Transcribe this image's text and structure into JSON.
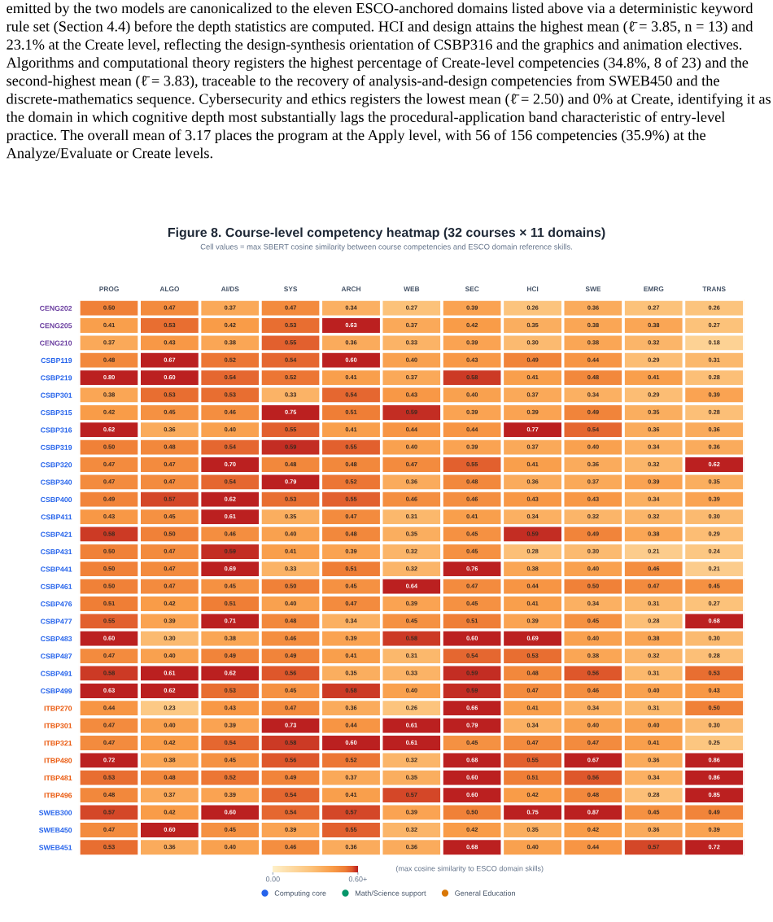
{
  "chart_data": {
    "type": "heatmap",
    "title": "Figure 8. Course-level competency heatmap (32 courses × 11 domains)",
    "subtitle": "Cell values = max SBERT cosine similarity between course competencies and ESCO domain reference skills.",
    "annotations": [
      "emitted by the two models are canonicalized to the eleven ESCO-anchored domains listed above via a deterministic keyword rule set (Section 4.4) before the depth statistics are computed. HCI and design attains the highest mean (ℓ̄ = 3.85, n = 13) and 23.1% at the Create level, reflecting the design-synthesis orientation of CSBP316 and the graphics and animation electives. Algorithms and computational theory registers the highest percentage of Create-level competencies (34.8%, 8 of 23) and the second-highest mean (ℓ̄ = 3.83), traceable to the recovery of analysis-and-design competencies from SWEB450 and the discrete-mathematics sequence. Cybersecurity and ethics registers the lowest mean (ℓ̄ = 2.50) and 0% at Create, identifying it as the domain in which cognitive depth most substantially lags the procedural-application band characteristic of entry-level practice. The overall mean of 3.17 places the program at the Apply level, with 56 of 156 competencies (35.9%) at the Analyze/Evaluate or Create levels."
    ],
    "categories": [
      "PROG",
      "ALGO",
      "AI/DS",
      "SYS",
      "ARCH",
      "WEB",
      "SEC",
      "HCI",
      "SWE",
      "EMRG",
      "TRANS"
    ],
    "y_categories": [
      "CENG202",
      "CENG205",
      "CENG210",
      "CSBP119",
      "CSBP219",
      "CSBP301",
      "CSBP315",
      "CSBP316",
      "CSBP319",
      "CSBP320",
      "CSBP340",
      "CSBP400",
      "CSBP411",
      "CSBP421",
      "CSBP431",
      "CSBP441",
      "CSBP461",
      "CSBP476",
      "CSBP477",
      "CSBP483",
      "CSBP487",
      "CSBP491",
      "CSBP499",
      "ITBP270",
      "ITBP301",
      "ITBP321",
      "ITBP480",
      "ITBP481",
      "ITBP496",
      "SWEB300",
      "SWEB450",
      "SWEB451"
    ],
    "colors": [
      "#6b3fa0",
      "#6b3fa0",
      "#6b3fa0",
      "#2563eb",
      "#2563eb",
      "#2563eb",
      "#2563eb",
      "#2563eb",
      "#2563eb",
      "#2563eb",
      "#2563eb",
      "#2563eb",
      "#2563eb",
      "#2563eb",
      "#2563eb",
      "#2563eb",
      "#2563eb",
      "#2563eb",
      "#2563eb",
      "#2563eb",
      "#2563eb",
      "#2563eb",
      "#2563eb",
      "#ea580c",
      "#ea580c",
      "#ea580c",
      "#ea580c",
      "#ea580c",
      "#ea580c",
      "#2563eb",
      "#2563eb",
      "#2563eb"
    ],
    "cells": [
      [
        0.5,
        0.47,
        0.37,
        0.47,
        0.34,
        0.27,
        0.39,
        0.26,
        0.36,
        0.27,
        0.26
      ],
      [
        0.41,
        0.53,
        0.42,
        0.53,
        0.63,
        0.37,
        0.42,
        0.35,
        0.38,
        0.38,
        0.27
      ],
      [
        0.37,
        0.43,
        0.38,
        0.55,
        0.36,
        0.33,
        0.39,
        0.3,
        0.38,
        0.32,
        0.18
      ],
      [
        0.48,
        0.67,
        0.52,
        0.54,
        0.6,
        0.4,
        0.43,
        0.49,
        0.44,
        0.29,
        0.31
      ],
      [
        0.8,
        0.6,
        0.54,
        0.52,
        0.41,
        0.37,
        0.58,
        0.41,
        0.48,
        0.41,
        0.28
      ],
      [
        0.38,
        0.53,
        0.53,
        0.33,
        0.54,
        0.43,
        0.4,
        0.37,
        0.34,
        0.29,
        0.39
      ],
      [
        0.42,
        0.45,
        0.46,
        0.75,
        0.51,
        0.59,
        0.39,
        0.39,
        0.49,
        0.35,
        0.28
      ],
      [
        0.62,
        0.36,
        0.4,
        0.55,
        0.41,
        0.44,
        0.44,
        0.77,
        0.54,
        0.36,
        0.36
      ],
      [
        0.5,
        0.48,
        0.54,
        0.59,
        0.55,
        0.4,
        0.39,
        0.37,
        0.4,
        0.34,
        0.36
      ],
      [
        0.47,
        0.47,
        0.7,
        0.48,
        0.48,
        0.47,
        0.55,
        0.41,
        0.36,
        0.32,
        0.62
      ],
      [
        0.47,
        0.47,
        0.54,
        0.79,
        0.52,
        0.36,
        0.48,
        0.36,
        0.37,
        0.39,
        0.35
      ],
      [
        0.49,
        0.57,
        0.62,
        0.53,
        0.55,
        0.46,
        0.46,
        0.43,
        0.43,
        0.34,
        0.39
      ],
      [
        0.43,
        0.45,
        0.61,
        0.35,
        0.47,
        0.31,
        0.41,
        0.34,
        0.32,
        0.32,
        0.3
      ],
      [
        0.58,
        0.5,
        0.46,
        0.4,
        0.48,
        0.35,
        0.45,
        0.59,
        0.49,
        0.38,
        0.29
      ],
      [
        0.5,
        0.47,
        0.59,
        0.41,
        0.39,
        0.32,
        0.45,
        0.28,
        0.3,
        0.21,
        0.24
      ],
      [
        0.5,
        0.47,
        0.69,
        0.33,
        0.51,
        0.32,
        0.76,
        0.38,
        0.4,
        0.46,
        0.21
      ],
      [
        0.5,
        0.47,
        0.45,
        0.5,
        0.45,
        0.64,
        0.47,
        0.44,
        0.5,
        0.47,
        0.45
      ],
      [
        0.51,
        0.42,
        0.51,
        0.4,
        0.47,
        0.39,
        0.45,
        0.41,
        0.34,
        0.31,
        0.27
      ],
      [
        0.55,
        0.39,
        0.71,
        0.48,
        0.34,
        0.45,
        0.51,
        0.39,
        0.45,
        0.28,
        0.68
      ],
      [
        0.6,
        0.3,
        0.38,
        0.46,
        0.39,
        0.58,
        0.6,
        0.69,
        0.4,
        0.38,
        0.3
      ],
      [
        0.47,
        0.4,
        0.49,
        0.49,
        0.41,
        0.31,
        0.54,
        0.53,
        0.38,
        0.32,
        0.28
      ],
      [
        0.58,
        0.61,
        0.62,
        0.56,
        0.35,
        0.33,
        0.59,
        0.48,
        0.56,
        0.31,
        0.53
      ],
      [
        0.63,
        0.62,
        0.53,
        0.45,
        0.58,
        0.4,
        0.59,
        0.47,
        0.46,
        0.4,
        0.43
      ],
      [
        0.44,
        0.23,
        0.43,
        0.47,
        0.36,
        0.26,
        0.66,
        0.41,
        0.34,
        0.31,
        0.5
      ],
      [
        0.47,
        0.4,
        0.39,
        0.73,
        0.44,
        0.61,
        0.79,
        0.34,
        0.4,
        0.4,
        0.3
      ],
      [
        0.47,
        0.42,
        0.54,
        0.58,
        0.6,
        0.61,
        0.45,
        0.47,
        0.47,
        0.41,
        0.25
      ],
      [
        0.72,
        0.38,
        0.45,
        0.56,
        0.52,
        0.32,
        0.68,
        0.55,
        0.67,
        0.36,
        0.86
      ],
      [
        0.53,
        0.48,
        0.52,
        0.49,
        0.37,
        0.35,
        0.6,
        0.51,
        0.56,
        0.34,
        0.86
      ],
      [
        0.48,
        0.37,
        0.39,
        0.54,
        0.41,
        0.57,
        0.6,
        0.42,
        0.48,
        0.28,
        0.85
      ],
      [
        0.57,
        0.42,
        0.6,
        0.54,
        0.57,
        0.39,
        0.5,
        0.75,
        0.87,
        0.45,
        0.49
      ],
      [
        0.47,
        0.6,
        0.45,
        0.39,
        0.55,
        0.32,
        0.42,
        0.35,
        0.42,
        0.36,
        0.39
      ],
      [
        0.53,
        0.36,
        0.4,
        0.46,
        0.36,
        0.36,
        0.68,
        0.4,
        0.44,
        0.57,
        0.72
      ]
    ],
    "cell_labels": [
      [
        "0.50",
        "0.47",
        "0.37",
        "0.47",
        "0.34",
        "0.27",
        "0.39",
        "0.26",
        "0.36",
        "0.27",
        "0.26"
      ],
      [
        "0.41",
        "0.53",
        "0.42",
        "0.53",
        "0.63",
        "0.37",
        "0.42",
        "0.35",
        "0.38",
        "0.38",
        "0.27"
      ],
      [
        "0.37",
        "0.43",
        "0.38",
        "0.55",
        "0.36",
        "0.33",
        "0.39",
        "0.30",
        "0.38",
        "0.32",
        "0.18"
      ],
      [
        "0.48",
        "0.67",
        "0.52",
        "0.54",
        "0.60",
        "0.40",
        "0.43",
        "0.49",
        "0.44",
        "0.29",
        "0.31"
      ],
      [
        "0.80",
        "0.60",
        "0.54",
        "0.52",
        "0.41",
        "0.37",
        "0.58",
        "0.41",
        "0.48",
        "0.41",
        "0.28"
      ],
      [
        "0.38",
        "0.53",
        "0.53",
        "0.33",
        "0.54",
        "0.43",
        "0.40",
        "0.37",
        "0.34",
        "0.29",
        "0.39"
      ],
      [
        "0.42",
        "0.45",
        "0.46",
        "0.75",
        "0.51",
        "0.59",
        "0.39",
        "0.39",
        "0.49",
        "0.35",
        "0.28"
      ],
      [
        "0.62",
        "0.36",
        "0.40",
        "0.55",
        "0.41",
        "0.44",
        "0.44",
        "0.77",
        "0.54",
        "0.36",
        "0.36"
      ],
      [
        "0.50",
        "0.48",
        "0.54",
        "0.59",
        "0.55",
        "0.40",
        "0.39",
        "0.37",
        "0.40",
        "0.34",
        "0.36"
      ],
      [
        "0.47",
        "0.47",
        "0.70",
        "0.48",
        "0.48",
        "0.47",
        "0.55",
        "0.41",
        "0.36",
        "0.32",
        "0.62"
      ],
      [
        "0.47",
        "0.47",
        "0.54",
        "0.79",
        "0.52",
        "0.36",
        "0.48",
        "0.36",
        "0.37",
        "0.39",
        "0.35"
      ],
      [
        "0.49",
        "0.57",
        "0.62",
        "0.53",
        "0.55",
        "0.46",
        "0.46",
        "0.43",
        "0.43",
        "0.34",
        "0.39"
      ],
      [
        "0.43",
        "0.45",
        "0.61",
        "0.35",
        "0.47",
        "0.31",
        "0.41",
        "0.34",
        "0.32",
        "0.32",
        "0.30"
      ],
      [
        "0.58",
        "0.50",
        "0.46",
        "0.40",
        "0.48",
        "0.35",
        "0.45",
        "0.59",
        "0.49",
        "0.38",
        "0.29"
      ],
      [
        "0.50",
        "0.47",
        "0.59",
        "0.41",
        "0.39",
        "0.32",
        "0.45",
        "0.28",
        "0.30",
        "0.21",
        "0.24"
      ],
      [
        "0.50",
        "0.47",
        "0.69",
        "0.33",
        "0.51",
        "0.32",
        "0.76",
        "0.38",
        "0.40",
        "0.46",
        "0.21"
      ],
      [
        "0.50",
        "0.47",
        "0.45",
        "0.50",
        "0.45",
        "0.64",
        "0.47",
        "0.44",
        "0.50",
        "0.47",
        "0.45"
      ],
      [
        "0.51",
        "0.42",
        "0.51",
        "0.40",
        "0.47",
        "0.39",
        "0.45",
        "0.41",
        "0.34",
        "0.31",
        "0.27"
      ],
      [
        "0.55",
        "0.39",
        "0.71",
        "0.48",
        "0.34",
        "0.45",
        "0.51",
        "0.39",
        "0.45",
        "0.28",
        "0.68"
      ],
      [
        "0.60",
        "0.30",
        "0.38",
        "0.46",
        "0.39",
        "0.58",
        "0.60",
        "0.69",
        "0.40",
        "0.38",
        "0.30"
      ],
      [
        "0.47",
        "0.40",
        "0.49",
        "0.49",
        "0.41",
        "0.31",
        "0.54",
        "0.53",
        "0.38",
        "0.32",
        "0.28"
      ],
      [
        "0.58",
        "0.61",
        "0.62",
        "0.56",
        "0.35",
        "0.33",
        "0.59",
        "0.48",
        "0.56",
        "0.31",
        "0.53"
      ],
      [
        "0.63",
        "0.62",
        "0.53",
        "0.45",
        "0.58",
        "0.40",
        "0.59",
        "0.47",
        "0.46",
        "0.40",
        "0.43"
      ],
      [
        "0.44",
        "0.23",
        "0.43",
        "0.47",
        "0.36",
        "0.26",
        "0.66",
        "0.41",
        "0.34",
        "0.31",
        "0.50"
      ],
      [
        "0.47",
        "0.40",
        "0.39",
        "0.73",
        "0.44",
        "0.61",
        "0.79",
        "0.34",
        "0.40",
        "0.40",
        "0.30"
      ],
      [
        "0.47",
        "0.42",
        "0.54",
        "0.58",
        "0.60",
        "0.61",
        "0.45",
        "0.47",
        "0.47",
        "0.41",
        "0.25"
      ],
      [
        "0.72",
        "0.38",
        "0.45",
        "0.56",
        "0.52",
        "0.32",
        "0.68",
        "0.55",
        "0.67",
        "0.36",
        "0.86"
      ],
      [
        "0.53",
        "0.48",
        "0.52",
        "0.49",
        "0.37",
        "0.35",
        "0.60",
        "0.51",
        "0.56",
        "0.34",
        "0.86"
      ],
      [
        "0.48",
        "0.37",
        "0.39",
        "0.54",
        "0.41",
        "0.57",
        "0.60",
        "0.42",
        "0.48",
        "0.28",
        "0.85"
      ],
      [
        "0.57",
        "0.42",
        "0.60",
        "0.54",
        "0.57",
        "0.39",
        "0.50",
        "0.75",
        "0.87",
        "0.45",
        "0.49"
      ],
      [
        "0.47",
        "0.60",
        "0.45",
        "0.39",
        "0.55",
        "0.32",
        "0.42",
        "0.35",
        "0.42",
        "0.36",
        "0.39"
      ],
      [
        "0.53",
        "0.36",
        "0.40",
        "0.46",
        "0.36",
        "0.36",
        "0.68",
        "0.40",
        "0.44",
        "0.57",
        "0.72"
      ]
    ],
    "clim": [
      0,
      0.6
    ],
    "cticks": [
      {
        "value": 0,
        "label": "0.00"
      },
      {
        "value": 0.6,
        "label": "0.60+"
      }
    ],
    "clabel": "(max cosine similarity to ESCO domain skills)",
    "series": [
      {
        "name": "Computing core",
        "color": "#2563eb",
        "values": [
          null,
          null,
          null,
          null,
          null,
          null,
          null,
          null,
          null,
          null,
          null
        ]
      },
      {
        "name": "Math/Science support",
        "color": "#059669",
        "values": [
          null,
          null,
          null,
          null,
          null,
          null,
          null,
          null,
          null,
          null,
          null
        ]
      },
      {
        "name": "General Education",
        "color": "#d97706",
        "values": [
          null,
          null,
          null,
          null,
          null,
          null,
          null,
          null,
          null,
          null,
          null
        ]
      }
    ],
    "legend": "bottom"
  }
}
